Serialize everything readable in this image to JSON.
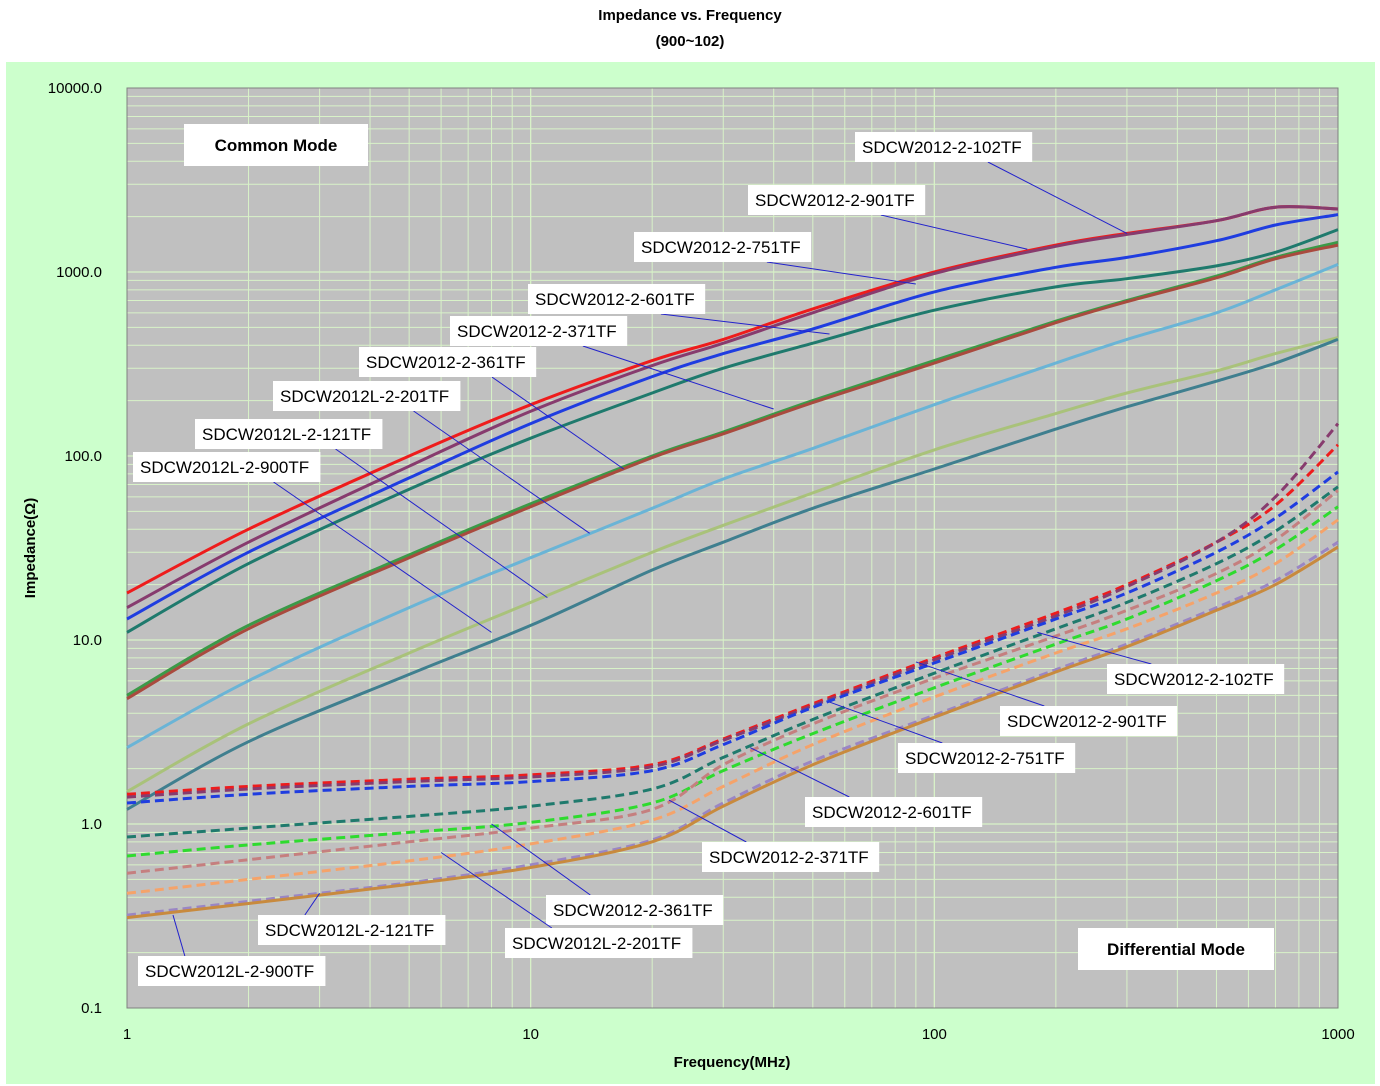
{
  "chart_data": {
    "type": "line",
    "title": "Impedance vs. Frequency",
    "subtitle": "(900~102)",
    "xlabel": "Frequency(MHz)",
    "ylabel": "Impedance(Ω)",
    "x_scale": "log",
    "y_scale": "log",
    "xlim": [
      1,
      1000
    ],
    "ylim": [
      0.1,
      10000
    ],
    "x_ticks": [
      "1",
      "10",
      "100",
      "1000"
    ],
    "y_ticks": [
      "0.1",
      "1.0",
      "10.0",
      "100.0",
      "1000.0",
      "10000.0"
    ],
    "grid": true,
    "annotations": {
      "common_mode": "Common Mode",
      "differential_mode": "Differential Mode"
    },
    "x": [
      1,
      2,
      5,
      10,
      20,
      30,
      50,
      100,
      200,
      300,
      500,
      700,
      1000
    ],
    "series": [
      {
        "name": "SDCW2012-2-102TF",
        "mode": "common",
        "dash": false,
        "color": "#ee1c1c",
        "values": [
          18,
          40,
          100,
          190,
          330,
          430,
          630,
          1000,
          1400,
          1620,
          1900,
          2250,
          2200
        ]
      },
      {
        "name": "SDCW2012-2-901TF",
        "mode": "common",
        "dash": false,
        "color": "#873b6e",
        "values": [
          15,
          34,
          88,
          175,
          310,
          410,
          600,
          980,
          1380,
          1600,
          1900,
          2250,
          2200
        ]
      },
      {
        "name": "SDCW2012-2-751TF",
        "mode": "common",
        "dash": false,
        "color": "#1f3de0",
        "values": [
          13,
          30,
          76,
          150,
          270,
          360,
          490,
          780,
          1060,
          1200,
          1480,
          1800,
          2050
        ]
      },
      {
        "name": "SDCW2012-2-601TF",
        "mode": "common",
        "dash": false,
        "color": "#1f7a6d",
        "values": [
          11,
          26,
          66,
          125,
          220,
          300,
          410,
          620,
          830,
          920,
          1080,
          1280,
          1700
        ]
      },
      {
        "name": "SDCW2012-2-371TF",
        "mode": "common",
        "dash": false,
        "color": "#3b9a48",
        "values": [
          5,
          12,
          29,
          55,
          100,
          135,
          200,
          330,
          540,
          700,
          950,
          1200,
          1450
        ]
      },
      {
        "name": "SDCW2012-2-361TF",
        "mode": "common",
        "dash": false,
        "color": "#a94a3e",
        "values": [
          4.8,
          11.5,
          28,
          53,
          98,
          132,
          195,
          320,
          530,
          690,
          930,
          1180,
          1400
        ]
      },
      {
        "name": "SDCW2012L-2-201TF",
        "mode": "common",
        "dash": false,
        "color": "#6ab4d6",
        "values": [
          2.6,
          6,
          15,
          28,
          52,
          75,
          110,
          190,
          320,
          430,
          600,
          800,
          1100
        ]
      },
      {
        "name": "SDCW2012L-2-121TF",
        "mode": "common",
        "dash": false,
        "color": "#a9c27a",
        "values": [
          1.5,
          3.5,
          8.5,
          16,
          30,
          42,
          63,
          108,
          170,
          220,
          290,
          360,
          440
        ]
      },
      {
        "name": "SDCW2012L-2-900TF",
        "mode": "common",
        "dash": false,
        "color": "#3f7f8f",
        "values": [
          1.2,
          2.8,
          6.5,
          12,
          24,
          34,
          52,
          85,
          140,
          185,
          255,
          320,
          430
        ]
      },
      {
        "name": "SDCW2012-2-102TF",
        "mode": "differential",
        "dash": true,
        "color": "#ee1c1c",
        "values": [
          1.45,
          1.6,
          1.75,
          1.85,
          2.1,
          2.9,
          4.5,
          8,
          14,
          20,
          34,
          54,
          115
        ]
      },
      {
        "name": "SDCW2012-2-901TF",
        "mode": "differential",
        "dash": true,
        "color": "#873b6e",
        "values": [
          1.4,
          1.55,
          1.7,
          1.8,
          2.05,
          2.85,
          4.4,
          7.8,
          13.5,
          19.5,
          34,
          60,
          150
        ]
      },
      {
        "name": "SDCW2012-2-751TF",
        "mode": "differential",
        "dash": true,
        "color": "#1f3de0",
        "values": [
          1.3,
          1.45,
          1.6,
          1.7,
          1.95,
          2.7,
          4.3,
          7.5,
          13,
          18,
          30,
          46,
          82
        ]
      },
      {
        "name": "SDCW2012-2-601TF",
        "mode": "differential",
        "dash": true,
        "color": "#1f7a6d",
        "values": [
          0.85,
          0.95,
          1.1,
          1.25,
          1.55,
          2.3,
          3.7,
          6.6,
          11.5,
          16,
          26,
          39,
          68
        ]
      },
      {
        "name": "SDCW2012-2-371TF",
        "mode": "differential",
        "dash": true,
        "color": "#2edb2e",
        "values": [
          0.67,
          0.77,
          0.9,
          1.02,
          1.3,
          1.95,
          3.1,
          5.5,
          9.5,
          13,
          21,
          31,
          53
        ]
      },
      {
        "name": "SDCW2012-2-361TF",
        "mode": "differential",
        "dash": true,
        "color": "#c57f7f",
        "values": [
          0.54,
          0.64,
          0.8,
          0.95,
          1.2,
          2.1,
          3.5,
          6.2,
          10.5,
          14.5,
          23,
          35,
          65
        ]
      },
      {
        "name": "SDCW2012L-2-201TF",
        "mode": "differential",
        "dash": true,
        "color": "#f5a36a",
        "values": [
          0.42,
          0.5,
          0.63,
          0.78,
          1.05,
          1.6,
          2.7,
          4.9,
          8.5,
          11.5,
          18,
          26,
          45
        ]
      },
      {
        "name": "SDCW2012L-2-121TF",
        "mode": "differential",
        "dash": true,
        "color": "#9a86c4",
        "values": [
          0.32,
          0.38,
          0.48,
          0.6,
          0.82,
          1.3,
          2.2,
          3.9,
          6.9,
          9.5,
          15,
          21,
          34
        ]
      },
      {
        "name": "SDCW2012L-2-900TF",
        "mode": "differential",
        "dash": false,
        "color": "#c88a3e",
        "values": [
          0.31,
          0.37,
          0.47,
          0.58,
          0.8,
          1.25,
          2.1,
          3.8,
          6.7,
          9.2,
          14.5,
          20,
          32
        ]
      }
    ],
    "callouts": [
      {
        "text": "SDCW2012-2-102TF",
        "mode": "common",
        "point": [
          300,
          1620
        ]
      },
      {
        "text": "SDCW2012-2-901TF",
        "mode": "common",
        "point": [
          170,
          1330
        ]
      },
      {
        "text": "SDCW2012-2-751TF",
        "mode": "common",
        "point": [
          90,
          860
        ]
      },
      {
        "text": "SDCW2012-2-601TF",
        "mode": "common",
        "point": [
          55,
          460
        ]
      },
      {
        "text": "SDCW2012-2-371TF",
        "mode": "common",
        "point": [
          40,
          180
        ]
      },
      {
        "text": "SDCW2012-2-361TF",
        "mode": "common",
        "point": [
          17,
          85
        ]
      },
      {
        "text": "SDCW2012L-2-201TF",
        "mode": "common",
        "point": [
          14,
          38
        ]
      },
      {
        "text": "SDCW2012L-2-121TF",
        "mode": "common",
        "point": [
          11,
          17
        ]
      },
      {
        "text": "SDCW2012L-2-900TF",
        "mode": "common",
        "point": [
          8,
          11
        ]
      },
      {
        "text": "SDCW2012-2-102TF",
        "mode": "differential",
        "point": [
          180,
          11
        ]
      },
      {
        "text": "SDCW2012-2-901TF",
        "mode": "differential",
        "point": [
          90,
          7.6
        ]
      },
      {
        "text": "SDCW2012-2-751TF",
        "mode": "differential",
        "point": [
          55,
          4.6
        ]
      },
      {
        "text": "SDCW2012-2-601TF",
        "mode": "differential",
        "point": [
          35,
          2.6
        ]
      },
      {
        "text": "SDCW2012-2-371TF",
        "mode": "differential",
        "point": [
          22,
          1.35
        ]
      },
      {
        "text": "SDCW2012-2-361TF",
        "mode": "differential",
        "point": [
          8,
          1.0
        ]
      },
      {
        "text": "SDCW2012L-2-201TF",
        "mode": "differential",
        "point": [
          6,
          0.7
        ]
      },
      {
        "text": "SDCW2012L-2-121TF",
        "mode": "differential",
        "point": [
          3,
          0.42
        ]
      },
      {
        "text": "SDCW2012L-2-900TF",
        "mode": "differential",
        "point": [
          1.3,
          0.32
        ]
      }
    ]
  }
}
